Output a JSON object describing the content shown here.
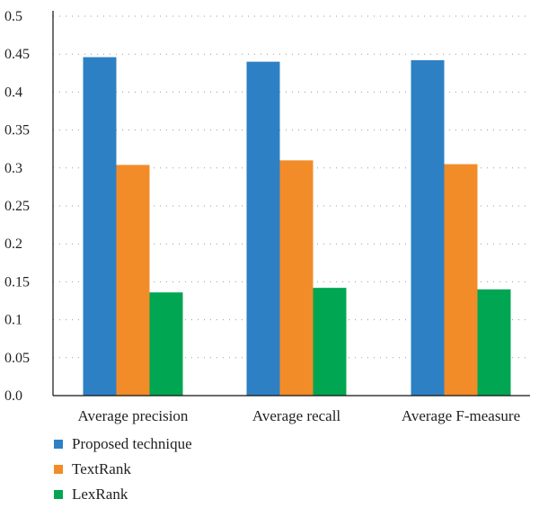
{
  "chart_data": {
    "type": "bar",
    "title": "",
    "xlabel": "",
    "ylabel": "",
    "categories": [
      "Average precision",
      "Average recall",
      "Average F-measure"
    ],
    "series": [
      {
        "name": "Proposed technique",
        "color": "#2e80c4",
        "values": [
          0.446,
          0.44,
          0.442
        ]
      },
      {
        "name": "TextRank",
        "color": "#f28c28",
        "values": [
          0.304,
          0.31,
          0.305
        ]
      },
      {
        "name": "LexRank",
        "color": "#00a651",
        "values": [
          0.136,
          0.142,
          0.14
        ]
      }
    ],
    "ylim": [
      0,
      0.5
    ],
    "yticks": [
      {
        "value": 0,
        "label": "0.0"
      },
      {
        "value": 0.05,
        "label": "0.05"
      },
      {
        "value": 0.1,
        "label": "0.1"
      },
      {
        "value": 0.15,
        "label": "0.15"
      },
      {
        "value": 0.2,
        "label": "0.2"
      },
      {
        "value": 0.25,
        "label": "0.25"
      },
      {
        "value": 0.3,
        "label": "0.3"
      },
      {
        "value": 0.35,
        "label": "0.35"
      },
      {
        "value": 0.4,
        "label": "0.4"
      },
      {
        "value": 0.45,
        "label": "0.45"
      },
      {
        "value": 0.5,
        "label": "0.5"
      }
    ],
    "grid": "horizontal-dotted",
    "legend_position": "bottom-left"
  }
}
